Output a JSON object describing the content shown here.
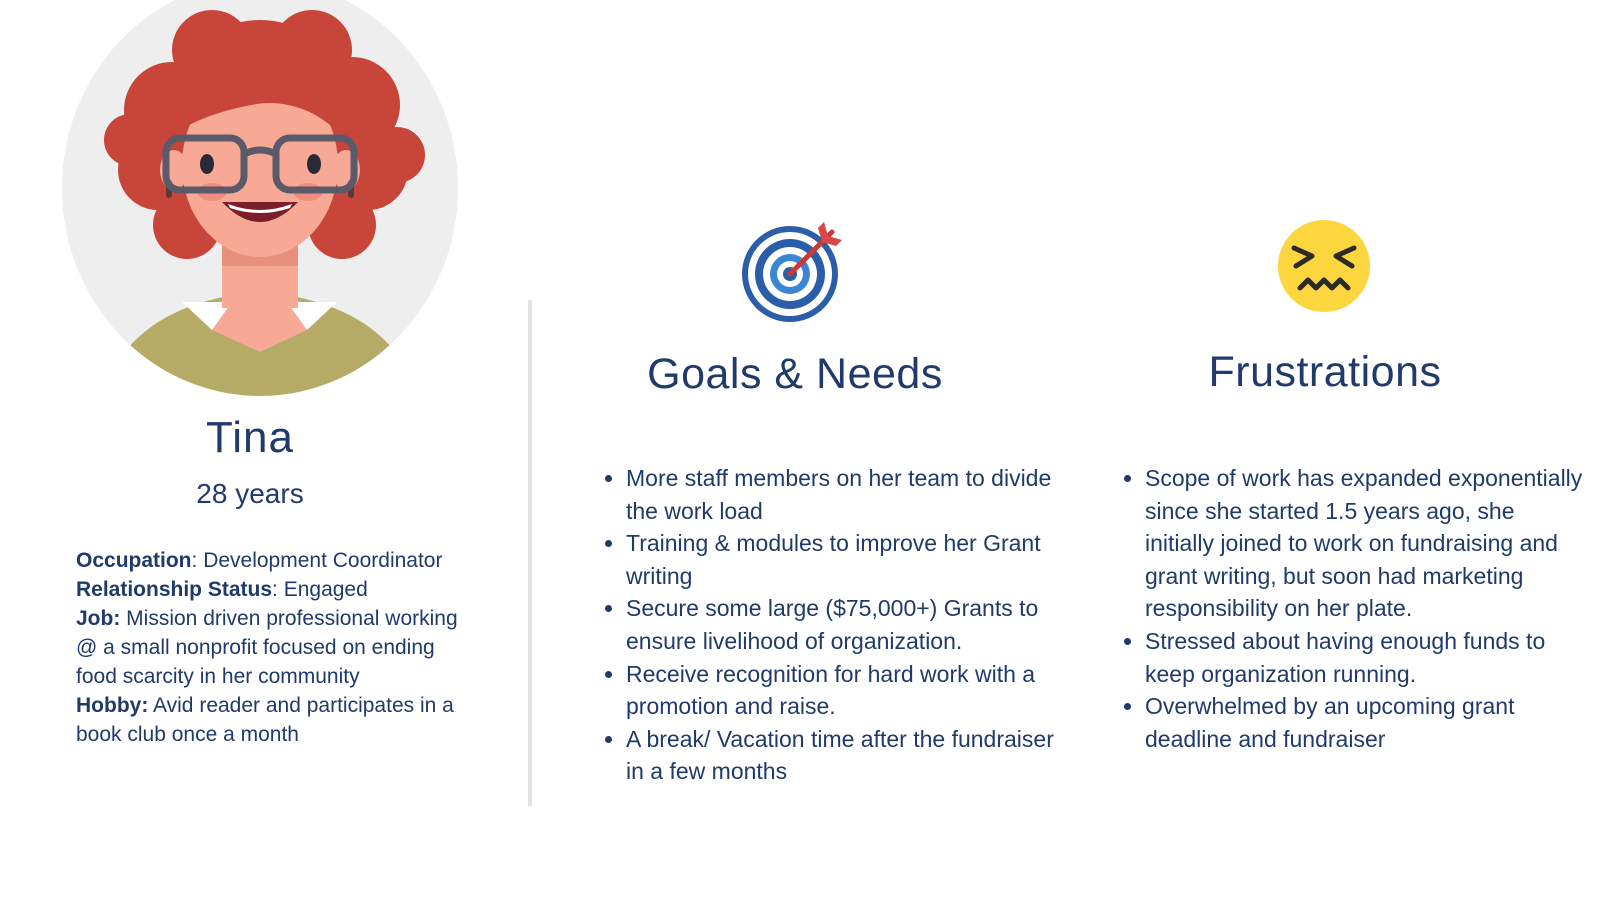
{
  "persona": {
    "name": "Tina",
    "age": "28 years",
    "details": [
      {
        "label": "Occupation",
        "sep": ": ",
        "value": "Development Coordinator"
      },
      {
        "label": "Relationship Status",
        "sep": ": ",
        "value": "Engaged"
      },
      {
        "label": "Job:",
        "sep": " ",
        "value": "Mission driven professional working @ a small nonprofit focused on ending food scarcity in her community"
      },
      {
        "label": "Hobby:",
        "sep": " ",
        "value": "Avid reader and participates in a book club once a month"
      }
    ]
  },
  "goals": {
    "heading": "Goals & Needs",
    "icon": "target-icon",
    "items": [
      "More staff members on her team to divide the work load",
      "Training & modules to improve her Grant writing",
      "Secure some large ($75,000+) Grants to ensure livelihood of organization.",
      "Receive recognition for hard work with a promotion and raise.",
      "A break/ Vacation time after the fundraiser in a few months"
    ]
  },
  "frustrations": {
    "heading": "Frustrations",
    "icon": "confounded-face-icon",
    "items": [
      "Scope of work has expanded exponentially since she started 1.5 years ago, she initially joined to work on fundraising and grant writing, but soon had marketing responsibility on her plate.",
      "Stressed about having enough funds to keep organization running.",
      "Overwhelmed by an upcoming grant deadline and fundraiser"
    ]
  },
  "colors": {
    "text": "#1f3a6b",
    "hair": "#c8453a",
    "skin": "#f7a995",
    "sweater": "#b5ab66",
    "emoji": "#fbd63e",
    "target": "#2b5ea8"
  }
}
